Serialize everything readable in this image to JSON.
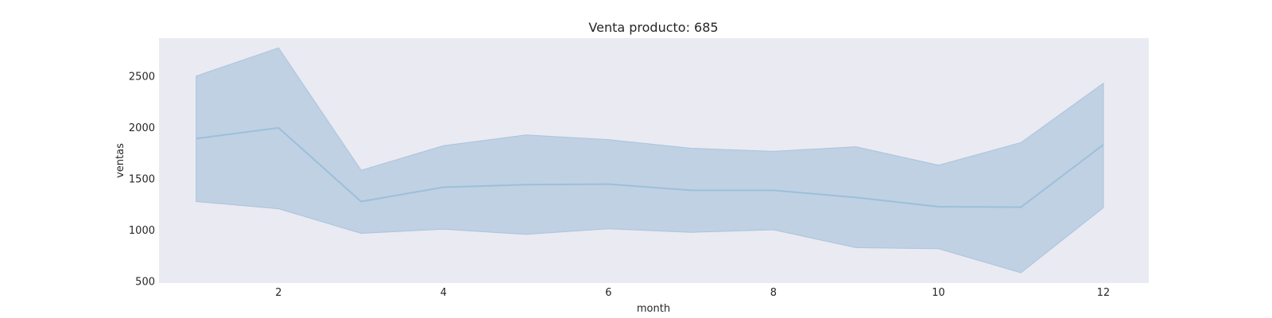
{
  "chart_data": {
    "type": "line",
    "title": "Venta producto: 685",
    "xlabel": "month",
    "ylabel": "ventas",
    "xlim": [
      0.55,
      12.55
    ],
    "ylim": [
      480,
      2870
    ],
    "xticks": [
      2,
      4,
      6,
      8,
      10,
      12
    ],
    "yticks": [
      500,
      1000,
      1500,
      2000,
      2500
    ],
    "grid": false,
    "colors": {
      "background": "#eaeaf2",
      "line": "#9dbfda",
      "band": "#c0d1e3",
      "band_edge": "#a9c4dc"
    },
    "series": [
      {
        "x": [
          1,
          2,
          3,
          4,
          5,
          6,
          7,
          8,
          9,
          10,
          11,
          12
        ],
        "mean": [
          1890,
          1995,
          1275,
          1415,
          1440,
          1445,
          1385,
          1385,
          1315,
          1225,
          1220,
          1830
        ],
        "lower": [
          1275,
          1205,
          965,
          1005,
          955,
          1010,
          975,
          1000,
          825,
          815,
          580,
          1215
        ],
        "upper": [
          2500,
          2775,
          1580,
          1820,
          1925,
          1880,
          1795,
          1765,
          1810,
          1630,
          1850,
          2430
        ]
      }
    ]
  }
}
